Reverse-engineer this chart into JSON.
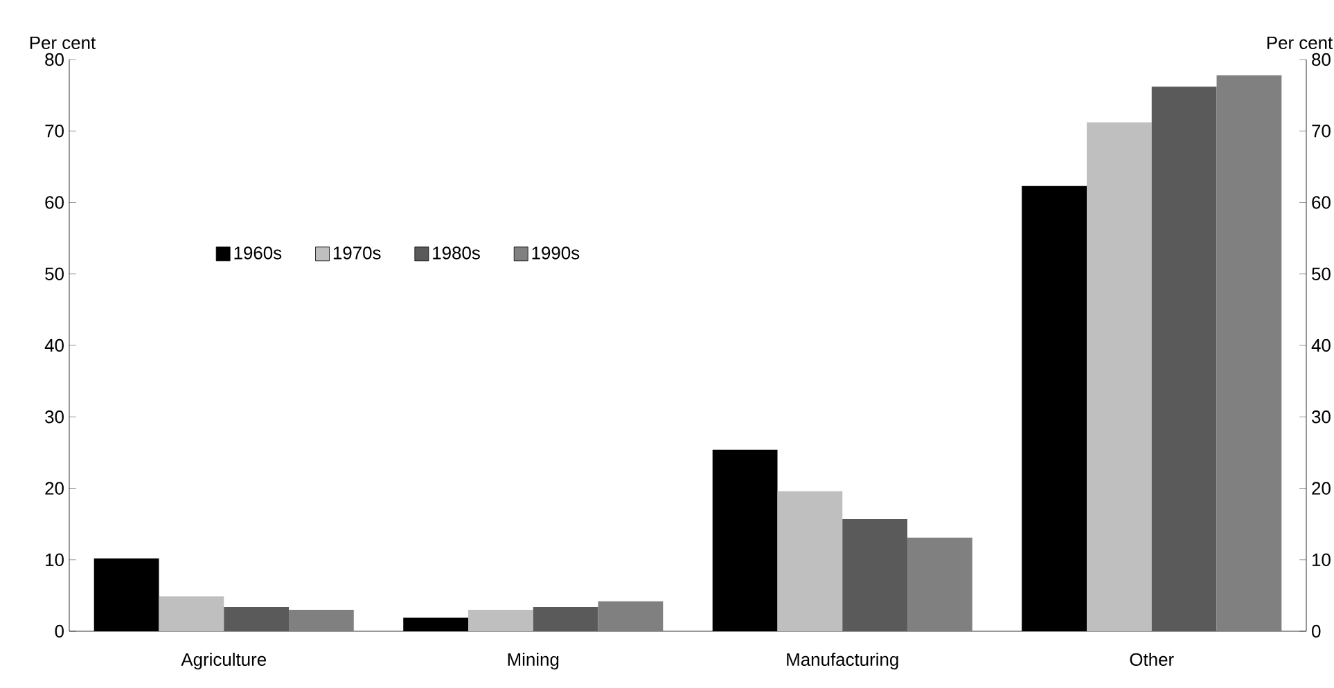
{
  "chart_data": {
    "type": "bar",
    "ylabel": "Per cent",
    "y2label": "Per cent",
    "categories": [
      "Agriculture",
      "Mining",
      "Manufacturing",
      "Other"
    ],
    "series": [
      {
        "name": "1960s",
        "color": "#000000",
        "values": [
          10.2,
          1.9,
          25.4,
          62.3
        ]
      },
      {
        "name": "1970s",
        "color": "#bfbfbf",
        "values": [
          4.9,
          3.0,
          19.6,
          71.2
        ]
      },
      {
        "name": "1980s",
        "color": "#5a5a5a",
        "values": [
          3.4,
          3.4,
          15.7,
          76.2
        ]
      },
      {
        "name": "1990s",
        "color": "#808080",
        "values": [
          3.0,
          4.2,
          13.1,
          77.8
        ]
      }
    ],
    "ylim": [
      0,
      80
    ],
    "yticks": [
      0,
      10,
      20,
      30,
      40,
      50,
      60,
      70,
      80
    ],
    "y2lim": [
      0,
      80
    ],
    "y2ticks": [
      0,
      10,
      20,
      30,
      40,
      50,
      60,
      70,
      80
    ],
    "legend": "left",
    "grid": false
  }
}
